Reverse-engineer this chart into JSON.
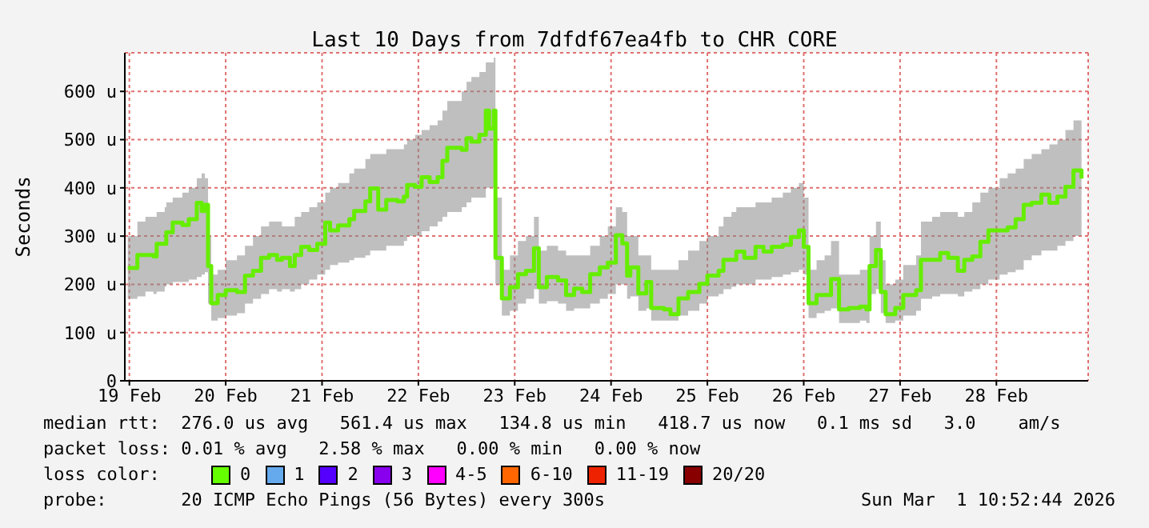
{
  "chart_data": {
    "type": "step",
    "title": "Last 10 Days from 7dfdf67ea4fb to CHR CORE",
    "ylabel": "Seconds",
    "xlim": [
      "2026-02-19T10:52",
      "2026-03-01T10:52"
    ],
    "xticks": [
      {
        "value": "2026-02-19T12:00",
        "label": "19 Feb"
      },
      {
        "value": "2026-02-20T12:00",
        "label": "20 Feb"
      },
      {
        "value": "2026-02-21T12:00",
        "label": "21 Feb"
      },
      {
        "value": "2026-02-22T12:00",
        "label": "22 Feb"
      },
      {
        "value": "2026-02-23T12:00",
        "label": "23 Feb"
      },
      {
        "value": "2026-02-24T12:00",
        "label": "24 Feb"
      },
      {
        "value": "2026-02-25T12:00",
        "label": "25 Feb"
      },
      {
        "value": "2026-02-26T12:00",
        "label": "26 Feb"
      },
      {
        "value": "2026-02-27T12:00",
        "label": "27 Feb"
      },
      {
        "value": "2026-02-28T12:00",
        "label": "28 Feb"
      }
    ],
    "ylim": [
      0,
      680
    ],
    "yticks": [
      0,
      {
        "value": 100,
        "label": "100 u"
      },
      {
        "value": 200,
        "label": "200 u"
      },
      {
        "value": 300,
        "label": "300 u"
      },
      {
        "value": 400,
        "label": "400 u"
      },
      {
        "value": 500,
        "label": "500 u"
      },
      {
        "value": 600,
        "label": "600 u"
      }
    ],
    "grid": true,
    "legend": false,
    "x": [
      "2026-02-19T11:36",
      "2026-02-19T14:00",
      "2026-02-19T16:00",
      "2026-02-19T18:00",
      "2026-02-19T18:48",
      "2026-02-19T20:48",
      "2026-02-19T21:12",
      "2026-02-19T22:48",
      "2026-02-20T01:12",
      "2026-02-20T02:48",
      "2026-02-20T04:48",
      "2026-02-20T06:00",
      "2026-02-20T06:48",
      "2026-02-20T07:36",
      "2026-02-20T08:24",
      "2026-02-20T10:00",
      "2026-02-20T12:00",
      "2026-02-20T14:48",
      "2026-02-20T16:48",
      "2026-02-20T18:48",
      "2026-02-20T20:48",
      "2026-02-20T22:48",
      "2026-02-21T00:48",
      "2026-02-21T02:00",
      "2026-02-21T04:00",
      "2026-02-21T05:12",
      "2026-02-21T06:48",
      "2026-02-21T08:48",
      "2026-02-21T10:48",
      "2026-02-21T12:48",
      "2026-02-21T14:00",
      "2026-02-21T16:00",
      "2026-02-21T18:48",
      "2026-02-21T20:00",
      "2026-02-21T22:48",
      "2026-02-22T00:00",
      "2026-02-22T02:00",
      "2026-02-22T04:00",
      "2026-02-22T06:48",
      "2026-02-22T08:24",
      "2026-02-22T09:12",
      "2026-02-22T11:12",
      "2026-02-22T12:48",
      "2026-02-22T14:48",
      "2026-02-22T16:48",
      "2026-02-22T18:00",
      "2026-02-22T19:12",
      "2026-02-22T22:48",
      "2026-02-23T00:00",
      "2026-02-23T01:12",
      "2026-02-23T03:12",
      "2026-02-23T04:48",
      "2026-02-23T05:36",
      "2026-02-23T06:48",
      "2026-02-23T07:12",
      "2026-02-23T08:48",
      "2026-02-23T10:48",
      "2026-02-23T12:48",
      "2026-02-23T14:48",
      "2026-02-23T16:48",
      "2026-02-23T18:00",
      "2026-02-23T20:00",
      "2026-02-23T22:48",
      "2026-02-24T00:48",
      "2026-02-24T02:48",
      "2026-02-24T04:48",
      "2026-02-24T06:48",
      "2026-02-24T09:12",
      "2026-02-24T11:12",
      "2026-02-24T13:12",
      "2026-02-24T14:48",
      "2026-02-24T16:00",
      "2026-02-24T16:48",
      "2026-02-24T18:48",
      "2026-02-24T20:48",
      "2026-02-24T22:00",
      "2026-02-25T01:12",
      "2026-02-25T02:48",
      "2026-02-25T04:48",
      "2026-02-25T07:12",
      "2026-02-25T10:00",
      "2026-02-25T12:00",
      "2026-02-25T14:48",
      "2026-02-25T16:00",
      "2026-02-25T18:00",
      "2026-02-25T19:12",
      "2026-02-25T21:12",
      "2026-02-26T00:00",
      "2026-02-26T02:00",
      "2026-02-26T04:00",
      "2026-02-26T06:48",
      "2026-02-26T08:48",
      "2026-02-26T10:48",
      "2026-02-26T12:00",
      "2026-02-26T13:12",
      "2026-02-26T15:12",
      "2026-02-26T17:12",
      "2026-02-26T18:48",
      "2026-02-26T20:48",
      "2026-02-26T23:12",
      "2026-02-27T02:00",
      "2026-02-27T03:36",
      "2026-02-27T04:24",
      "2026-02-27T06:00",
      "2026-02-27T07:12",
      "2026-02-27T08:24",
      "2026-02-27T10:48",
      "2026-02-27T12:48",
      "2026-02-27T16:00",
      "2026-02-27T17:12",
      "2026-02-27T20:00",
      "2026-02-27T22:00",
      "2026-02-28T00:00",
      "2026-02-28T02:24",
      "2026-02-28T04:00",
      "2026-02-28T06:00",
      "2026-02-28T08:00",
      "2026-02-28T10:00",
      "2026-02-28T12:48",
      "2026-02-28T14:48",
      "2026-02-28T16:48",
      "2026-02-28T18:48",
      "2026-02-28T20:48",
      "2026-02-28T23:12",
      "2026-03-01T01:12",
      "2026-03-01T03:12",
      "2026-03-01T05:12",
      "2026-03-01T07:12",
      "2026-03-01T09:12"
    ],
    "series": [
      {
        "color": "#66ee00",
        "values": [
          234,
          261,
          261,
          258,
          284,
          284,
          308,
          328,
          323,
          335,
          369,
          352,
          365,
          238,
          161,
          178,
          188,
          184,
          218,
          228,
          255,
          261,
          251,
          255,
          238,
          261,
          278,
          271,
          284,
          328,
          312,
          322,
          335,
          352,
          372,
          399,
          355,
          375,
          372,
          382,
          406,
          402,
          422,
          412,
          422,
          456,
          483,
          479,
          503,
          496,
          510,
          560,
          523,
          560,
          255,
          171,
          194,
          221,
          228,
          275,
          194,
          215,
          208,
          178,
          191,
          184,
          221,
          235,
          245,
          302,
          285,
          218,
          235,
          181,
          205,
          151,
          148,
          138,
          171,
          184,
          201,
          218,
          228,
          251,
          251,
          268,
          255,
          278,
          268,
          278,
          282,
          298,
          312,
          278,
          161,
          178,
          178,
          211,
          148,
          151,
          154,
          148,
          238,
          271,
          184,
          138,
          151,
          178,
          188,
          251,
          251,
          265,
          255,
          228,
          251,
          258,
          288,
          312,
          312,
          318,
          335,
          365,
          369,
          386,
          369,
          382,
          402,
          436,
          419
        ],
        "lower": [
          170,
          175,
          185,
          180,
          185,
          195,
          200,
          205,
          205,
          210,
          215,
          220,
          225,
          160,
          125,
          130,
          135,
          140,
          160,
          170,
          180,
          190,
          185,
          190,
          185,
          190,
          200,
          210,
          220,
          230,
          240,
          245,
          250,
          255,
          260,
          270,
          270,
          280,
          280,
          290,
          300,
          300,
          310,
          320,
          330,
          340,
          350,
          360,
          370,
          380,
          380,
          400,
          400,
          420,
          200,
          135,
          145,
          160,
          170,
          190,
          160,
          165,
          160,
          145,
          150,
          150,
          160,
          170,
          180,
          200,
          200,
          170,
          175,
          145,
          150,
          125,
          125,
          125,
          135,
          145,
          160,
          175,
          180,
          190,
          195,
          200,
          200,
          210,
          210,
          215,
          220,
          225,
          230,
          220,
          130,
          140,
          145,
          150,
          120,
          120,
          125,
          120,
          180,
          190,
          140,
          120,
          125,
          135,
          145,
          170,
          175,
          180,
          180,
          175,
          185,
          190,
          200,
          210,
          220,
          225,
          230,
          250,
          260,
          270,
          270,
          280,
          290,
          300,
          300
        ],
        "upper": [
          300,
          330,
          340,
          340,
          350,
          360,
          370,
          380,
          390,
          400,
          420,
          430,
          420,
          300,
          220,
          230,
          250,
          260,
          280,
          300,
          320,
          330,
          330,
          320,
          320,
          340,
          350,
          360,
          370,
          390,
          400,
          410,
          430,
          440,
          460,
          470,
          470,
          480,
          480,
          490,
          500,
          510,
          520,
          530,
          540,
          560,
          580,
          600,
          620,
          630,
          640,
          660,
          660,
          670,
          380,
          230,
          260,
          290,
          300,
          340,
          270,
          280,
          270,
          260,
          260,
          260,
          280,
          300,
          320,
          360,
          350,
          300,
          300,
          260,
          260,
          230,
          230,
          230,
          250,
          270,
          290,
          300,
          320,
          340,
          350,
          360,
          360,
          370,
          370,
          380,
          390,
          400,
          410,
          380,
          230,
          250,
          260,
          290,
          220,
          220,
          230,
          230,
          300,
          330,
          250,
          200,
          210,
          240,
          260,
          330,
          340,
          350,
          350,
          340,
          350,
          370,
          390,
          400,
          420,
          430,
          440,
          460,
          470,
          480,
          490,
          500,
          520,
          540,
          540
        ]
      }
    ],
    "annotations": [
      "median rtt:  276.0 us avg   561.4 us max   134.8 us min   418.7 us now   0.1 ms sd   3.0    am/s",
      "packet loss: 0.01 % avg   2.58 % max   0.00 % min   0.00 % now",
      "loss color:",
      "0",
      "1",
      "2",
      "3",
      "4-5",
      "6-10",
      "11-19",
      "20/20",
      "probe:       20 ICMP Echo Pings (56 Bytes) every 300s",
      "Sun Mar  1 10:52:44 2026"
    ]
  }
}
